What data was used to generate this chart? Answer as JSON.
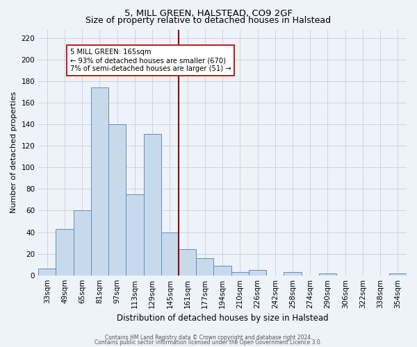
{
  "title": "5, MILL GREEN, HALSTEAD, CO9 2GF",
  "subtitle": "Size of property relative to detached houses in Halstead",
  "xlabel": "Distribution of detached houses by size in Halstead",
  "ylabel": "Number of detached properties",
  "bar_labels": [
    "33sqm",
    "49sqm",
    "65sqm",
    "81sqm",
    "97sqm",
    "113sqm",
    "129sqm",
    "145sqm",
    "161sqm",
    "177sqm",
    "194sqm",
    "210sqm",
    "226sqm",
    "242sqm",
    "258sqm",
    "274sqm",
    "290sqm",
    "306sqm",
    "322sqm",
    "338sqm",
    "354sqm"
  ],
  "bar_values": [
    6,
    43,
    60,
    174,
    140,
    75,
    131,
    40,
    24,
    16,
    9,
    3,
    5,
    0,
    3,
    0,
    2,
    0,
    0,
    0,
    2
  ],
  "bar_color": "#c9d9ec",
  "bar_edge_color": "#5a8fc0",
  "property_line_index": 8,
  "property_line_color": "#8b0000",
  "annotation_line1": "5 MILL GREEN: 165sqm",
  "annotation_line2": "← 93% of detached houses are smaller (670)",
  "annotation_line3": "7% of semi-detached houses are larger (51) →",
  "annotation_box_facecolor": "#ffffff",
  "annotation_box_edgecolor": "#cc0000",
  "ylim": [
    0,
    228
  ],
  "yticks": [
    0,
    20,
    40,
    60,
    80,
    100,
    120,
    140,
    160,
    180,
    200,
    220
  ],
  "footer1": "Contains HM Land Registry data © Crown copyright and database right 2024.",
  "footer2": "Contains public sector information licensed under the Open Government Licence 3.0.",
  "bg_color": "#eef2f9",
  "grid_color": "#c8d0dc",
  "title_fontsize": 9.5,
  "subtitle_fontsize": 9,
  "ylabel_fontsize": 8,
  "xlabel_fontsize": 8.5,
  "tick_fontsize": 7.5,
  "footer_fontsize": 5.5
}
